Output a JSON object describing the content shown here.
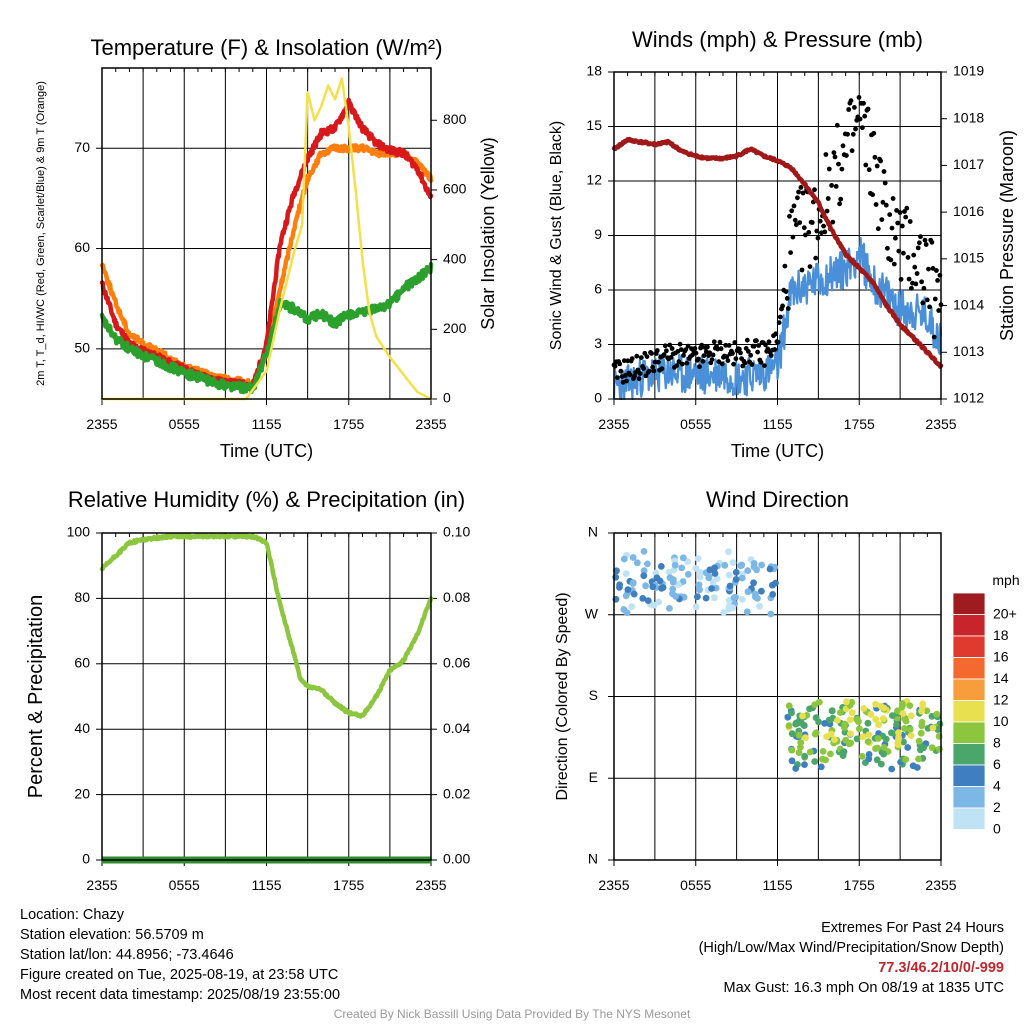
{
  "chart_data": [
    {
      "type": "line",
      "title": "Temperature (F) & Insolation (W/m²)",
      "xlabel": "Time (UTC)",
      "ylabel": "2m T, T_d, HI/WC (Red, Green, Scarlet/Blue) & 9m T (Orange)",
      "y2label": "Solar Insolation (Yellow)",
      "x_ticks": [
        "2355",
        "0555",
        "1155",
        "1755",
        "2355"
      ],
      "ylim": [
        45,
        78
      ],
      "y_ticks": [
        50,
        60,
        70
      ],
      "y2lim": [
        0,
        950
      ],
      "y2_ticks": [
        0,
        200,
        400,
        600,
        800
      ],
      "grid": true,
      "series": [
        {
          "color": "#d7191c",
          "axis": "left",
          "x": [
            0,
            1,
            2,
            3,
            4,
            5,
            6,
            7,
            8,
            9,
            10,
            11,
            12,
            13,
            14,
            15,
            16,
            17,
            18,
            19,
            20,
            21,
            22,
            23,
            24
          ],
          "values": [
            56.5,
            52.5,
            50.5,
            49.8,
            49.2,
            48.6,
            48.0,
            47.4,
            47.0,
            46.6,
            46.5,
            46.3,
            50.5,
            60.5,
            65.5,
            69.0,
            71.5,
            72.0,
            74.5,
            72.0,
            70.5,
            69.8,
            69.5,
            68.0,
            65.0
          ]
        },
        {
          "color": "#2ca02c",
          "axis": "left",
          "x": [
            0,
            1,
            2,
            3,
            4,
            5,
            6,
            7,
            8,
            9,
            10,
            11,
            12,
            13,
            14,
            15,
            16,
            17,
            18,
            19,
            20,
            21,
            22,
            23,
            24
          ],
          "values": [
            53.0,
            51.0,
            50.0,
            49.3,
            48.8,
            48.2,
            47.6,
            47.2,
            46.7,
            46.4,
            46.2,
            46.0,
            49.5,
            54.5,
            54.0,
            53.0,
            53.5,
            52.5,
            53.5,
            53.5,
            54.0,
            54.5,
            56.0,
            57.0,
            58.0
          ]
        },
        {
          "color": "#ff7f0e",
          "axis": "left",
          "x": [
            0,
            1,
            2,
            3,
            4,
            5,
            6,
            7,
            8,
            9,
            10,
            11,
            12,
            13,
            14,
            15,
            16,
            17,
            18,
            19,
            20,
            21,
            22,
            23,
            24
          ],
          "values": [
            58.5,
            54.5,
            51.5,
            50.5,
            49.8,
            49.0,
            48.2,
            47.8,
            47.3,
            47.0,
            46.8,
            46.5,
            49.5,
            56.0,
            62.0,
            67.0,
            69.5,
            70.0,
            70.0,
            70.0,
            69.5,
            69.5,
            69.5,
            68.5,
            67.0
          ]
        },
        {
          "color": "#f5e04b",
          "axis": "right",
          "x": [
            0,
            10.5,
            12,
            13,
            14,
            14.6,
            15,
            15.5,
            16,
            16.5,
            17,
            17.5,
            18,
            18.5,
            19,
            19.5,
            20,
            21,
            22,
            23,
            24
          ],
          "values": [
            0,
            0,
            80,
            260,
            420,
            500,
            880,
            800,
            840,
            900,
            860,
            920,
            780,
            600,
            400,
            250,
            180,
            120,
            70,
            20,
            0
          ]
        }
      ]
    },
    {
      "type": "line",
      "title": "Winds (mph) & Pressure (mb)",
      "xlabel": "Time (UTC)",
      "ylabel": "Sonic Wind & Gust (Blue, Black)",
      "y2label": "Station Pressure (Maroon)",
      "x_ticks": [
        "2355",
        "0555",
        "1155",
        "1755",
        "2355"
      ],
      "ylim": [
        0,
        18
      ],
      "y_ticks": [
        0,
        3,
        6,
        9,
        12,
        15,
        18
      ],
      "y2lim": [
        1012,
        1019
      ],
      "y2_ticks": [
        1012,
        1013,
        1014,
        1015,
        1016,
        1017,
        1018,
        1019
      ],
      "grid": true,
      "series": [
        {
          "color": "#4a90d9",
          "axis": "left",
          "x": [
            0,
            1,
            2,
            3,
            4,
            5,
            6,
            7,
            8,
            9,
            10,
            11,
            12,
            13,
            14,
            15,
            16,
            17,
            18,
            19,
            20,
            21,
            22,
            23,
            24
          ],
          "values": [
            0.7,
            0.8,
            1.2,
            1.3,
            1.5,
            1.3,
            1.4,
            1.3,
            1.5,
            1.2,
            1.3,
            1.5,
            1.8,
            5.8,
            6.2,
            6.5,
            6.9,
            7.2,
            8.0,
            6.4,
            5.7,
            5.0,
            4.8,
            4.5,
            3.2
          ]
        },
        {
          "color": "#000000",
          "axis": "left",
          "x": [
            0,
            1,
            2,
            3,
            4,
            5,
            6,
            7,
            8,
            9,
            10,
            11,
            12,
            13,
            14,
            15,
            16,
            17,
            18,
            19,
            20,
            21,
            22,
            23,
            24
          ],
          "values": [
            1.4,
            1.6,
            1.8,
            2.1,
            2.4,
            2.3,
            2.2,
            2.5,
            2.6,
            2.4,
            2.6,
            2.5,
            3.2,
            8.5,
            9.5,
            10.0,
            12.0,
            13.5,
            15.5,
            13.0,
            10.0,
            8.5,
            8.0,
            7.0,
            4.5
          ]
        },
        {
          "color": "#a01818",
          "axis": "right",
          "x": [
            0,
            1,
            2,
            3,
            4,
            5,
            6,
            7,
            8,
            9,
            10,
            11,
            12,
            13,
            14,
            15,
            16,
            17,
            18,
            19,
            20,
            21,
            22,
            23,
            24
          ],
          "values": [
            1017.35,
            1017.55,
            1017.5,
            1017.45,
            1017.5,
            1017.3,
            1017.2,
            1017.15,
            1017.15,
            1017.2,
            1017.35,
            1017.2,
            1017.1,
            1016.95,
            1016.6,
            1016.2,
            1015.6,
            1015.1,
            1014.8,
            1014.5,
            1014.0,
            1013.6,
            1013.3,
            1013.0,
            1012.7
          ]
        }
      ]
    },
    {
      "type": "line",
      "title": "Relative Humidity (%) & Precipitation (in)",
      "ylabel": "Percent & Precipitation",
      "x_ticks": [
        "2355",
        "0555",
        "1155",
        "1755",
        "2355"
      ],
      "ylim": [
        0,
        100
      ],
      "y_ticks": [
        0,
        20,
        40,
        60,
        80,
        100
      ],
      "y2lim": [
        0,
        0.1
      ],
      "y2_ticks": [
        "0.00",
        "0.02",
        "0.04",
        "0.06",
        "0.08",
        "0.10"
      ],
      "grid": true,
      "series": [
        {
          "color": "#8cc63f",
          "axis": "left",
          "x": [
            0,
            1,
            2,
            3,
            4,
            5,
            6,
            7,
            8,
            9,
            10,
            11,
            12,
            13,
            14,
            14.5,
            15,
            16,
            17,
            18,
            19,
            20,
            21,
            22,
            23,
            24
          ],
          "values": [
            89,
            93,
            97,
            98,
            98.5,
            99,
            99,
            99,
            99,
            99,
            99,
            99,
            97,
            78,
            63,
            55,
            53,
            52,
            48,
            45,
            44,
            50,
            58,
            61,
            69,
            80
          ]
        },
        {
          "color": "#2e8b2e",
          "axis": "right",
          "x": [
            0,
            24
          ],
          "values": [
            0,
            0
          ]
        }
      ]
    },
    {
      "type": "scatter",
      "title": "Wind Direction",
      "ylabel": "Direction (Colored By Speed)",
      "x_ticks": [
        "2355",
        "0555",
        "1155",
        "1755",
        "2355"
      ],
      "y_ticks": [
        "N",
        "E",
        "S",
        "W",
        "N"
      ],
      "ylim": [
        0,
        360
      ],
      "grid": true,
      "legend": {
        "title": "mph",
        "labels": [
          "20+",
          "18",
          "16",
          "14",
          "12",
          "10",
          "8",
          "6",
          "4",
          "2",
          "0"
        ],
        "colors": [
          "#9e1b20",
          "#c8242b",
          "#e0392e",
          "#f26a2f",
          "#f79d3b",
          "#e8e04f",
          "#8cc63f",
          "#4aa66a",
          "#3f7fbf",
          "#7db7e6",
          "#bfe3f5"
        ],
        "placement": "right"
      },
      "clusters": [
        {
          "x_range": [
            0,
            12
          ],
          "dir_range": [
            270,
            340
          ],
          "speed": 1
        },
        {
          "x_range": [
            0,
            12
          ],
          "dir_range": [
            285,
            325
          ],
          "speed": 3
        },
        {
          "x_range": [
            12.5,
            24
          ],
          "dir_range": [
            100,
            170
          ],
          "speed": 5
        },
        {
          "x_range": [
            12.5,
            24
          ],
          "dir_range": [
            110,
            165
          ],
          "speed": 7
        },
        {
          "x_range": [
            12.5,
            24
          ],
          "dir_range": [
            120,
            175
          ],
          "speed": 9
        }
      ]
    }
  ],
  "info": {
    "location": "Location: Chazy",
    "elevation": "Station elevation: 56.5709 m",
    "latlon": "Station lat/lon: 44.8956; -73.4646",
    "created": "Figure created on Tue, 2025-08-19, at 23:58 UTC",
    "recent": "Most recent data timestamp: 2025/08/19 23:55:00"
  },
  "extremes": {
    "heading": "Extremes For Past 24 Hours",
    "subheading": "(High/Low/Max Wind/Precipitation/Snow Depth)",
    "values": "77.3/46.2/10/0/-999",
    "gust": "Max Gust: 16.3 mph On 08/19 at 1835 UTC"
  },
  "credit": "Created By Nick Bassill Using Data Provided By The NYS Mesonet"
}
